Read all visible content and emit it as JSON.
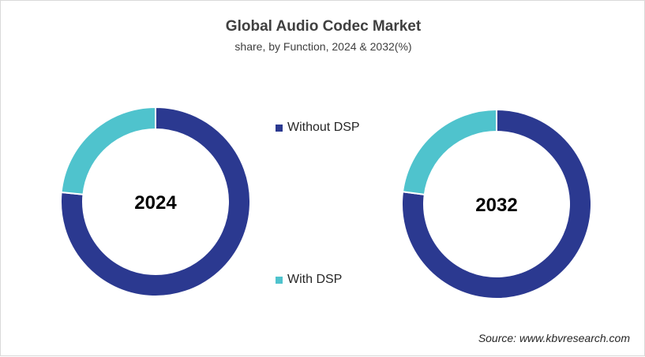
{
  "title": "Global Audio Codec Market",
  "subtitle": "share, by Function, 2024 & 2032(%)",
  "source": "Source: www.kbvresearch.com",
  "colors": {
    "Without DSP": "#2b3990",
    "With DSP": "#4fc3cd"
  },
  "chart_data": [
    {
      "type": "pie",
      "donut": true,
      "center_label": "2024",
      "categories": [
        "Without DSP",
        "With DSP"
      ],
      "values": [
        76.6,
        23.4
      ]
    },
    {
      "type": "pie",
      "donut": true,
      "center_label": "2032",
      "categories": [
        "Without DSP",
        "With DSP"
      ],
      "values": [
        77.1,
        22.9
      ]
    }
  ],
  "legend": [
    {
      "label": "Without DSP"
    },
    {
      "label": "With DSP"
    }
  ]
}
